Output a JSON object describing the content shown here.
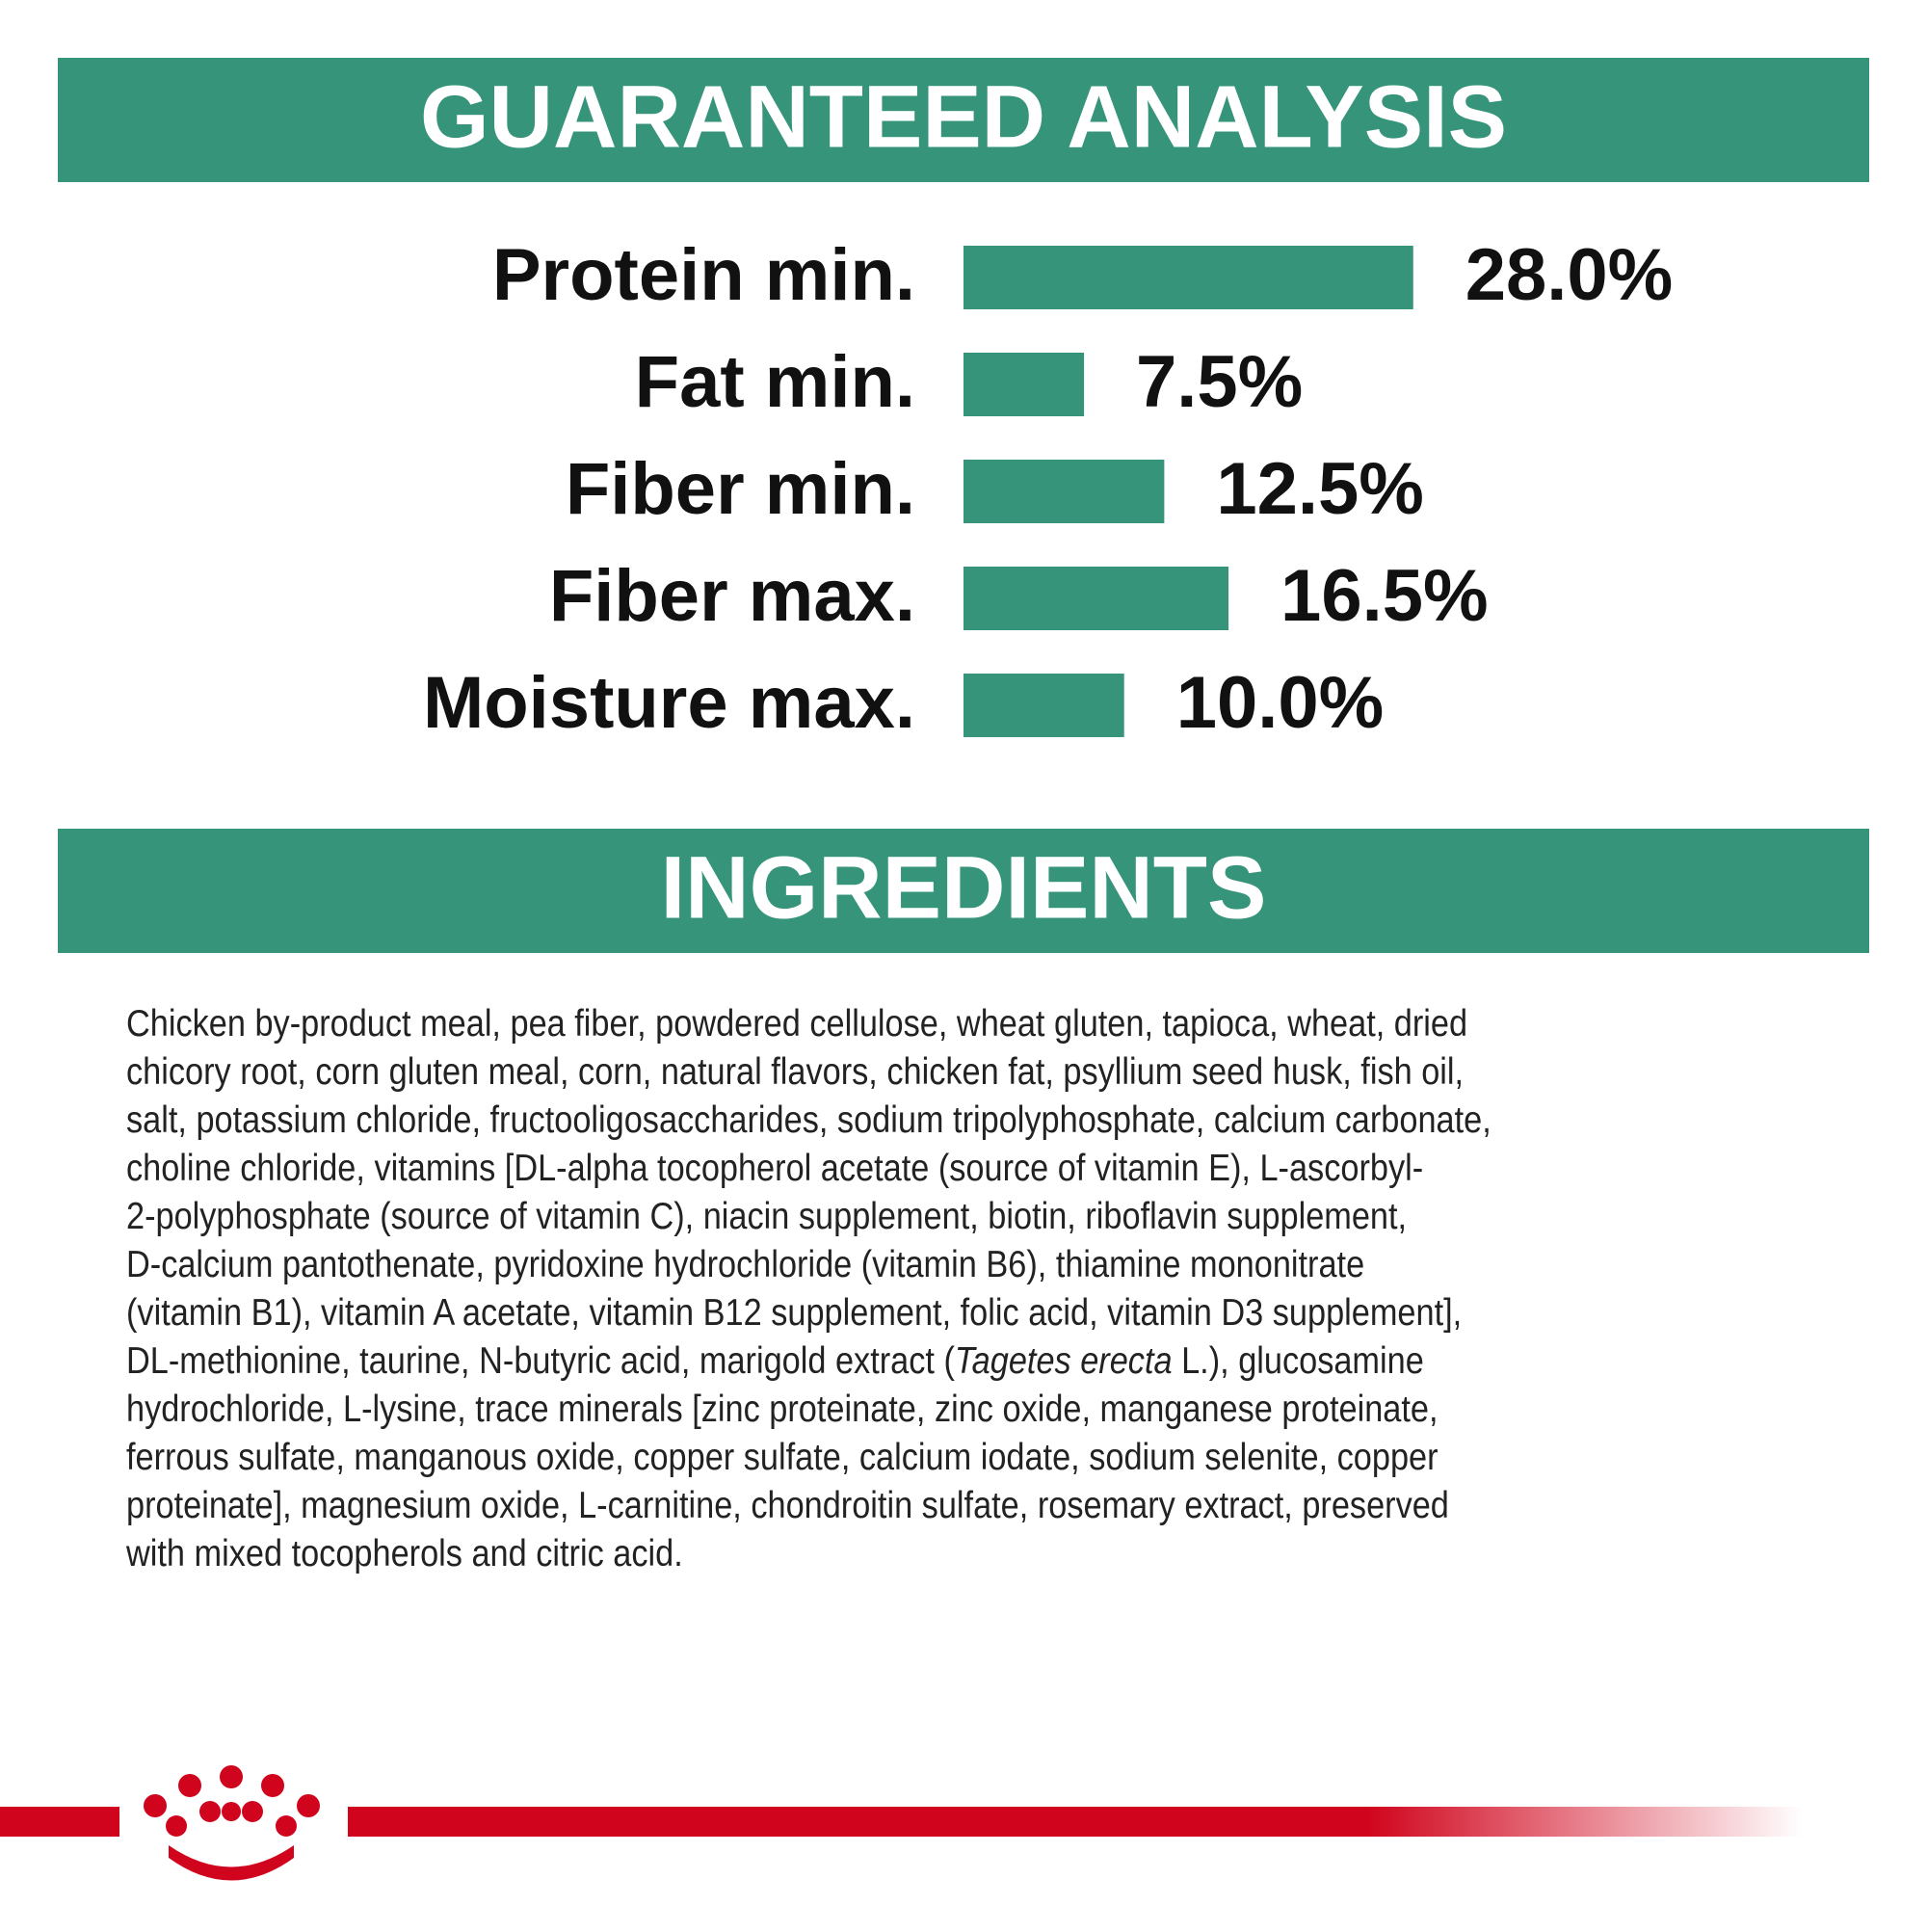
{
  "chart_data": {
    "type": "hbar",
    "title": "GUARANTEED ANALYSIS",
    "categories": [
      "Protein min.",
      "Fat min.",
      "Fiber min.",
      "Fiber max.",
      "Moisture max."
    ],
    "values": [
      28.0,
      7.5,
      12.5,
      16.5,
      10.0
    ],
    "value_labels": [
      "28.0%",
      "7.5%",
      "12.5%",
      "16.5%",
      "10.0%"
    ],
    "color": "#35947a"
  },
  "ingredients": {
    "title": "INGREDIENTS",
    "lines": [
      "Chicken by-product meal, pea fiber, powdered cellulose, wheat gluten, tapioca, wheat, dried",
      "chicory root, corn gluten meal, corn, natural flavors, chicken fat, psyllium seed husk, fish oil,",
      "salt, potassium chloride, fructooligosaccharides, sodium tripolyphosphate, calcium carbonate,",
      "choline chloride, vitamins [DL-alpha tocopherol acetate (source of vitamin E), L-ascorbyl-",
      "2-polyphosphate (source of vitamin C), niacin supplement, biotin, riboflavin supplement,",
      "D-calcium pantothenate, pyridoxine hydrochloride (vitamin B6), thiamine mononitrate",
      "(vitamin B1), vitamin A acetate, vitamin B12 supplement, folic acid, vitamin D3 supplement],",
      {
        "before": "DL-methionine, taurine, N-butyric acid, marigold extract (",
        "italic": "Tagetes erecta",
        "after": " L.), glucosamine"
      },
      "hydrochloride, L-lysine, trace minerals [zinc proteinate, zinc oxide, manganese proteinate,",
      "ferrous sulfate, manganous oxide, copper sulfate, calcium iodate, sodium selenite, copper",
      "proteinate], magnesium oxide, L-carnitine, chondroitin sulfate, rosemary extract, preserved",
      "with mixed tocopherols and citric acid."
    ]
  }
}
